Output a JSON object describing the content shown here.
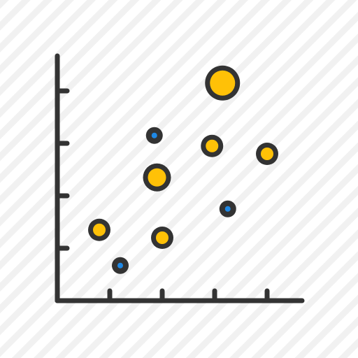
{
  "icon": {
    "name": "bubble-chart-icon",
    "colors": {
      "stroke": "#333333",
      "bubble_large": "#FFC107",
      "bubble_small": "#1E88E5",
      "stripe": "#efefef",
      "background": "#ffffff"
    }
  },
  "chart_data": {
    "type": "scatter",
    "title": "",
    "xlabel": "",
    "ylabel": "",
    "grid": false,
    "xlim": [
      0,
      5
    ],
    "ylim": [
      0,
      5
    ],
    "x_ticks": [
      1,
      2,
      3,
      4
    ],
    "y_ticks": [
      1,
      2,
      3,
      4
    ],
    "series": [
      {
        "color": "#FFC107",
        "points": [
          {
            "x": 0.8,
            "y": 1.35,
            "size": 2
          },
          {
            "x": 2.0,
            "y": 1.2,
            "size": 2
          },
          {
            "x": 1.9,
            "y": 2.35,
            "size": 3
          },
          {
            "x": 2.95,
            "y": 2.95,
            "size": 2
          },
          {
            "x": 4.0,
            "y": 2.8,
            "size": 2
          },
          {
            "x": 3.15,
            "y": 4.15,
            "size": 4
          }
        ]
      },
      {
        "color": "#1E88E5",
        "points": [
          {
            "x": 1.2,
            "y": 0.67,
            "size": 1
          },
          {
            "x": 1.85,
            "y": 3.15,
            "size": 1
          },
          {
            "x": 3.25,
            "y": 1.75,
            "size": 1
          }
        ]
      }
    ]
  }
}
